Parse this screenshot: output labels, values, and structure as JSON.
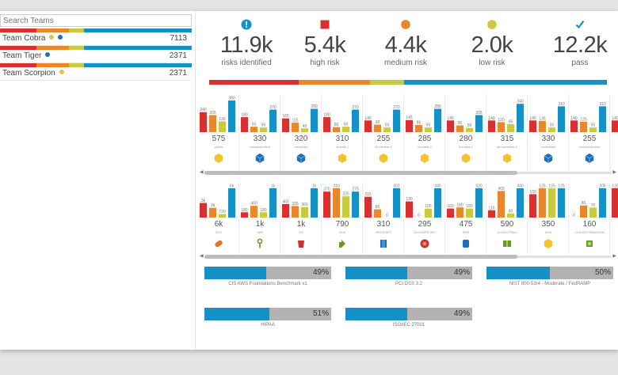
{
  "colors": {
    "high": "#d92f2f",
    "medium": "#e8872b",
    "low": "#c8cb40",
    "pass": "#1591c8"
  },
  "search": {
    "placeholder": "Search Teams"
  },
  "teams": [
    {
      "name": "Team Cobra",
      "count": "7113",
      "dots": [
        "#d6c840",
        "#1e6fb8"
      ],
      "bar": [
        0.19,
        0.17,
        0.08,
        0.56
      ]
    },
    {
      "name": "Team Tiger",
      "count": "2371",
      "dots": [
        "#1e6fb8"
      ],
      "bar": [
        0.19,
        0.17,
        0.08,
        0.56
      ]
    },
    {
      "name": "Team Scorpion",
      "count": "2371",
      "dots": [
        "#d6c840"
      ],
      "bar": [
        0.19,
        0.17,
        0.08,
        0.56
      ]
    }
  ],
  "stats": [
    {
      "icon": "exclamation-circle-icon",
      "value": "11.9k",
      "label": "risks identified"
    },
    {
      "icon": "red-square-icon",
      "value": "5.4k",
      "label": "high risk"
    },
    {
      "icon": "orange-circle-icon",
      "value": "4.4k",
      "label": "medium risk"
    },
    {
      "icon": "yellow-circle-icon",
      "value": "2.0k",
      "label": "low risk"
    },
    {
      "icon": "checkmark-icon",
      "value": "12.2k",
      "label": "pass"
    }
  ],
  "summary_bar": [
    0.225,
    0.18,
    0.085,
    0.51
  ],
  "regions": [
    {
      "total": "575",
      "name": "global",
      "bars": [
        240,
        205,
        130,
        380
      ],
      "icon": "yellow-hex-icon"
    },
    {
      "total": "330",
      "name": "canadacentral",
      "bars": [
        180,
        65,
        55,
        270
      ],
      "icon": "blue-cube-icon"
    },
    {
      "total": "320",
      "name": "westindia",
      "bars": [
        165,
        115,
        45,
        280
      ],
      "icon": "blue-cube-icon"
    },
    {
      "total": "310",
      "name": "us-east-1",
      "bars": [
        180,
        60,
        65,
        270
      ],
      "icon": "yellow-hex-icon"
    },
    {
      "total": "255",
      "name": "eu-central-1",
      "bars": [
        140,
        90,
        55,
        270
      ],
      "icon": "yellow-hex-icon"
    },
    {
      "total": "285",
      "name": "eu-west-2",
      "bars": [
        145,
        85,
        55,
        280
      ],
      "icon": "yellow-hex-icon"
    },
    {
      "total": "280",
      "name": "eu-west-1",
      "bars": [
        140,
        80,
        50,
        205
      ],
      "icon": "yellow-hex-icon"
    },
    {
      "total": "315",
      "name": "ap-northeast-2",
      "bars": [
        140,
        120,
        95,
        340
      ],
      "icon": "yellow-hex-icon"
    },
    {
      "total": "330",
      "name": "southindia",
      "bars": [
        140,
        135,
        55,
        310
      ],
      "icon": "blue-cube-icon"
    },
    {
      "total": "255",
      "name": "southcentralus",
      "bars": [
        140,
        125,
        55,
        310
      ],
      "icon": "blue-cube-icon"
    },
    {
      "total": "",
      "name": "",
      "bars": [
        140,
        120,
        0,
        0
      ],
      "icon": ""
    }
  ],
  "services": [
    {
      "total": "6k",
      "name": "EC2",
      "bars": [
        "3k",
        "2k",
        "720",
        "6k"
      ],
      "icon": "orange-pill-icon"
    },
    {
      "total": "1k",
      "name": "IAM",
      "bars": [
        "180",
        "400",
        "180",
        "1k"
      ],
      "icon": "green-key-icon"
    },
    {
      "total": "1k",
      "name": "S3",
      "bars": [
        "460",
        "395",
        "360",
        "1k"
      ],
      "icon": "red-bucket-icon"
    },
    {
      "total": "790",
      "name": "ELB",
      "bars": [
        "275",
        "310",
        "225",
        "275"
      ],
      "icon": "green-arrows-icon"
    },
    {
      "total": "310",
      "name": "REDSHIFT",
      "bars": [
        "215",
        "85",
        "0",
        "302"
      ],
      "icon": "blue-stack-icon"
    },
    {
      "total": "295",
      "name": "CLOUDFRONT",
      "bars": [
        "190",
        "0",
        "105",
        "345"
      ],
      "icon": "red-cloud-icon"
    },
    {
      "total": "475",
      "name": "RDS",
      "bars": [
        "160",
        "180",
        "160",
        "520"
      ],
      "icon": "blue-db-icon"
    },
    {
      "total": "590",
      "name": "CLOUDTRAIL",
      "bars": [
        "110",
        "400",
        "60",
        "440"
      ],
      "icon": "green-trail-icon"
    },
    {
      "total": "350",
      "name": "KMS",
      "bars": [
        "100",
        "125",
        "125",
        "125"
      ],
      "icon": "yellow-hex-icon"
    },
    {
      "total": "160",
      "name": "CLOUDFORMATION",
      "bars": [
        "0",
        "85",
        "70",
        "205"
      ],
      "icon": "green-formation-icon"
    },
    {
      "total": "",
      "name": "",
      "bars": [
        "130",
        "80",
        "0",
        "0"
      ],
      "icon": ""
    }
  ],
  "compliance": [
    {
      "name": "CIS AWS Foundations Benchmark v1",
      "percent": "49%",
      "value": 0.49
    },
    {
      "name": "PCI DSS 3.2",
      "percent": "49%",
      "value": 0.49
    },
    {
      "name": "NIST 800-53r4 - Moderate / FedRAMP",
      "percent": "50%",
      "value": 0.5
    },
    {
      "name": "HIPAA",
      "percent": "51%",
      "value": 0.51
    },
    {
      "name": "ISO/IEC 27001",
      "percent": "49%",
      "value": 0.49
    }
  ]
}
